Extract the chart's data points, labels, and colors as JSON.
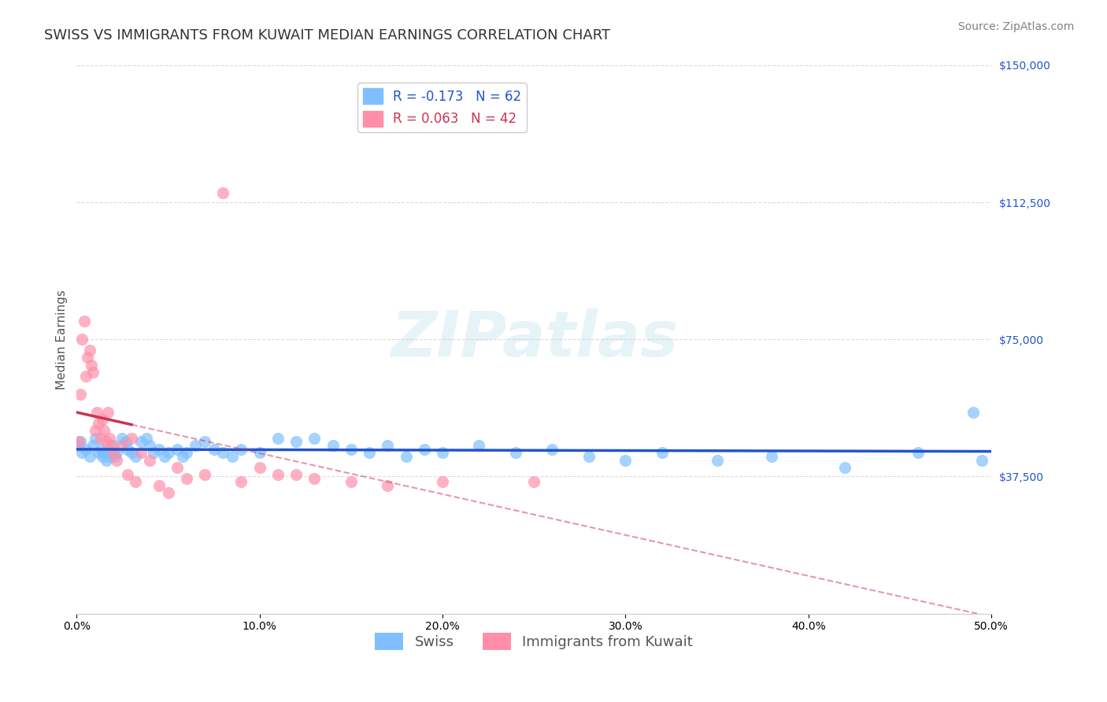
{
  "title": "SWISS VS IMMIGRANTS FROM KUWAIT MEDIAN EARNINGS CORRELATION CHART",
  "source_text": "Source: ZipAtlas.com",
  "xlabel": "",
  "ylabel": "Median Earnings",
  "xlim": [
    0,
    0.5
  ],
  "ylim": [
    0,
    150000
  ],
  "yticks": [
    0,
    37500,
    75000,
    112500,
    150000
  ],
  "ytick_labels": [
    "",
    "$37,500",
    "$75,000",
    "$112,500",
    "$150,000"
  ],
  "xticks": [
    0.0,
    0.1,
    0.2,
    0.3,
    0.4,
    0.5
  ],
  "xtick_labels": [
    "0.0%",
    "10.0%",
    "20.0%",
    "30.0%",
    "40.0%",
    "50.0%"
  ],
  "legend_swiss": "Swiss",
  "legend_kuwait": "Immigrants from Kuwait",
  "R_swiss": -0.173,
  "N_swiss": 62,
  "R_kuwait": 0.063,
  "N_kuwait": 42,
  "swiss_color": "#7fbfff",
  "swiss_trend_color": "#2255cc",
  "kuwait_color": "#ff8fa8",
  "kuwait_trend_color": "#cc3355",
  "swiss_scatter_x": [
    0.001,
    0.002,
    0.003,
    0.005,
    0.007,
    0.009,
    0.01,
    0.012,
    0.013,
    0.014,
    0.015,
    0.016,
    0.017,
    0.018,
    0.019,
    0.02,
    0.021,
    0.022,
    0.025,
    0.027,
    0.028,
    0.03,
    0.032,
    0.035,
    0.038,
    0.04,
    0.042,
    0.045,
    0.048,
    0.05,
    0.055,
    0.058,
    0.06,
    0.065,
    0.07,
    0.075,
    0.08,
    0.085,
    0.09,
    0.1,
    0.11,
    0.12,
    0.13,
    0.14,
    0.15,
    0.16,
    0.17,
    0.18,
    0.19,
    0.2,
    0.22,
    0.24,
    0.26,
    0.28,
    0.3,
    0.32,
    0.35,
    0.38,
    0.42,
    0.46,
    0.49,
    0.495
  ],
  "swiss_scatter_y": [
    46000,
    47000,
    44000,
    45000,
    43000,
    46000,
    48000,
    44000,
    45000,
    43000,
    44000,
    42000,
    45000,
    43000,
    44000,
    46000,
    43000,
    44000,
    48000,
    47000,
    45000,
    44000,
    43000,
    47000,
    48000,
    46000,
    44000,
    45000,
    43000,
    44000,
    45000,
    43000,
    44000,
    46000,
    47000,
    45000,
    44000,
    43000,
    45000,
    44000,
    48000,
    47000,
    48000,
    46000,
    45000,
    44000,
    46000,
    43000,
    45000,
    44000,
    46000,
    44000,
    45000,
    43000,
    42000,
    44000,
    42000,
    43000,
    40000,
    44000,
    55000,
    42000
  ],
  "kuwait_scatter_x": [
    0.001,
    0.002,
    0.003,
    0.004,
    0.005,
    0.006,
    0.007,
    0.008,
    0.009,
    0.01,
    0.011,
    0.012,
    0.013,
    0.014,
    0.015,
    0.016,
    0.017,
    0.018,
    0.019,
    0.02,
    0.022,
    0.025,
    0.028,
    0.03,
    0.032,
    0.035,
    0.04,
    0.045,
    0.05,
    0.055,
    0.06,
    0.07,
    0.08,
    0.09,
    0.1,
    0.11,
    0.12,
    0.13,
    0.15,
    0.17,
    0.2,
    0.25
  ],
  "kuwait_scatter_y": [
    47000,
    60000,
    75000,
    80000,
    65000,
    70000,
    72000,
    68000,
    66000,
    50000,
    55000,
    52000,
    48000,
    53000,
    50000,
    47000,
    55000,
    48000,
    46000,
    44000,
    42000,
    46000,
    38000,
    48000,
    36000,
    44000,
    42000,
    35000,
    33000,
    40000,
    37000,
    38000,
    115000,
    36000,
    40000,
    38000,
    38000,
    37000,
    36000,
    35000,
    36000,
    36000
  ],
  "watermark": "ZIPatlas",
  "background_color": "#ffffff",
  "grid_color": "#cccccc",
  "axis_color": "#2255cc",
  "title_color": "#333333",
  "title_fontsize": 13,
  "label_fontsize": 11,
  "tick_fontsize": 10,
  "legend_fontsize": 12,
  "source_fontsize": 10
}
